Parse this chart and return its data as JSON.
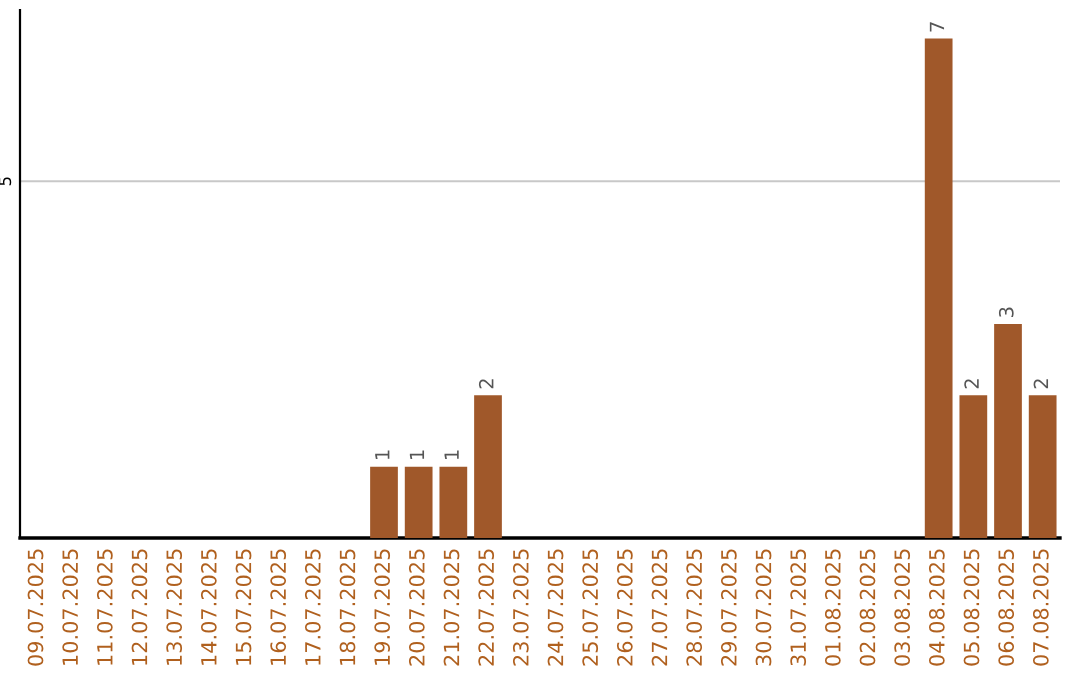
{
  "chart_data": {
    "type": "bar",
    "categories": [
      "09.07.2025",
      "10.07.2025",
      "11.07.2025",
      "12.07.2025",
      "13.07.2025",
      "14.07.2025",
      "15.07.2025",
      "16.07.2025",
      "17.07.2025",
      "18.07.2025",
      "19.07.2025",
      "20.07.2025",
      "21.07.2025",
      "22.07.2025",
      "23.07.2025",
      "24.07.2025",
      "25.07.2025",
      "26.07.2025",
      "27.07.2025",
      "28.07.2025",
      "29.07.2025",
      "30.07.2025",
      "31.07.2025",
      "01.08.2025",
      "02.08.2025",
      "03.08.2025",
      "04.08.2025",
      "05.08.2025",
      "06.08.2025",
      "07.08.2025"
    ],
    "values": [
      0,
      0,
      0,
      0,
      0,
      0,
      0,
      0,
      0,
      0,
      1,
      1,
      1,
      2,
      0,
      0,
      0,
      0,
      0,
      0,
      0,
      0,
      0,
      0,
      0,
      0,
      7,
      2,
      3,
      2
    ],
    "value_labels": [
      null,
      null,
      null,
      null,
      null,
      null,
      null,
      null,
      null,
      null,
      "1",
      "1",
      "1",
      "2",
      null,
      null,
      null,
      null,
      null,
      null,
      null,
      null,
      null,
      null,
      null,
      null,
      "7",
      "2",
      "3",
      "2"
    ],
    "color": "#a0582a",
    "ylim": [
      0,
      7.4
    ],
    "yticks": [
      5
    ],
    "grid": "y"
  }
}
